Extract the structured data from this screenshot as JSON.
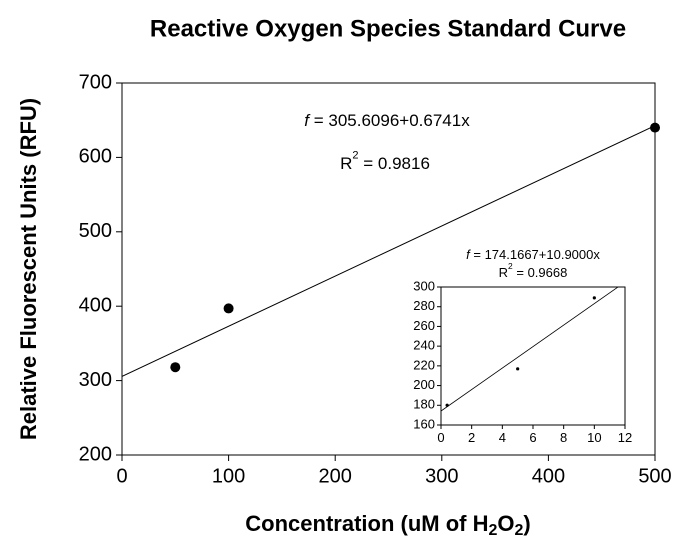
{
  "chart_data": [
    {
      "type": "scatter",
      "title": "Reactive Oxygen Species Standard Curve",
      "x_label": [
        "Concentration (uM of H",
        "2",
        "O",
        "2",
        ")"
      ],
      "y_label": "Relative Fluorescent Units (RFU)",
      "x": [
        50,
        100,
        500
      ],
      "values": [
        318,
        397,
        640
      ],
      "color": "#000000",
      "fit_line": {
        "x": [
          0,
          500
        ],
        "values": [
          305.6,
          642.7
        ]
      },
      "equation": {
        "symbol": "f",
        "text": " = 305.6096+0.6741x"
      },
      "r_squared": {
        "symbol": "R",
        "exponent": "2",
        "text": " = 0.9816"
      },
      "xlim": [
        0,
        500
      ],
      "xticks": [
        0,
        100,
        200,
        300,
        400,
        500
      ],
      "ylim": [
        200,
        700
      ],
      "yticks": [
        200,
        300,
        400,
        500,
        600,
        700
      ]
    },
    {
      "type": "scatter",
      "x": [
        0.4,
        5,
        10
      ],
      "values": [
        180,
        217,
        289
      ],
      "color": "#000000",
      "fit_line": {
        "x": [
          0,
          12
        ],
        "values": [
          174.17,
          304.97
        ]
      },
      "equation": {
        "symbol": "f",
        "text": " = 174.1667+10.9000x"
      },
      "r_squared": {
        "symbol": "R",
        "exponent": "2",
        "text": " = 0.9668"
      },
      "xlim": [
        0,
        12
      ],
      "xticks": [
        0,
        2,
        4,
        6,
        8,
        10,
        12
      ],
      "ylim": [
        160,
        300
      ],
      "yticks": [
        160,
        180,
        200,
        220,
        240,
        260,
        280,
        300
      ]
    }
  ]
}
